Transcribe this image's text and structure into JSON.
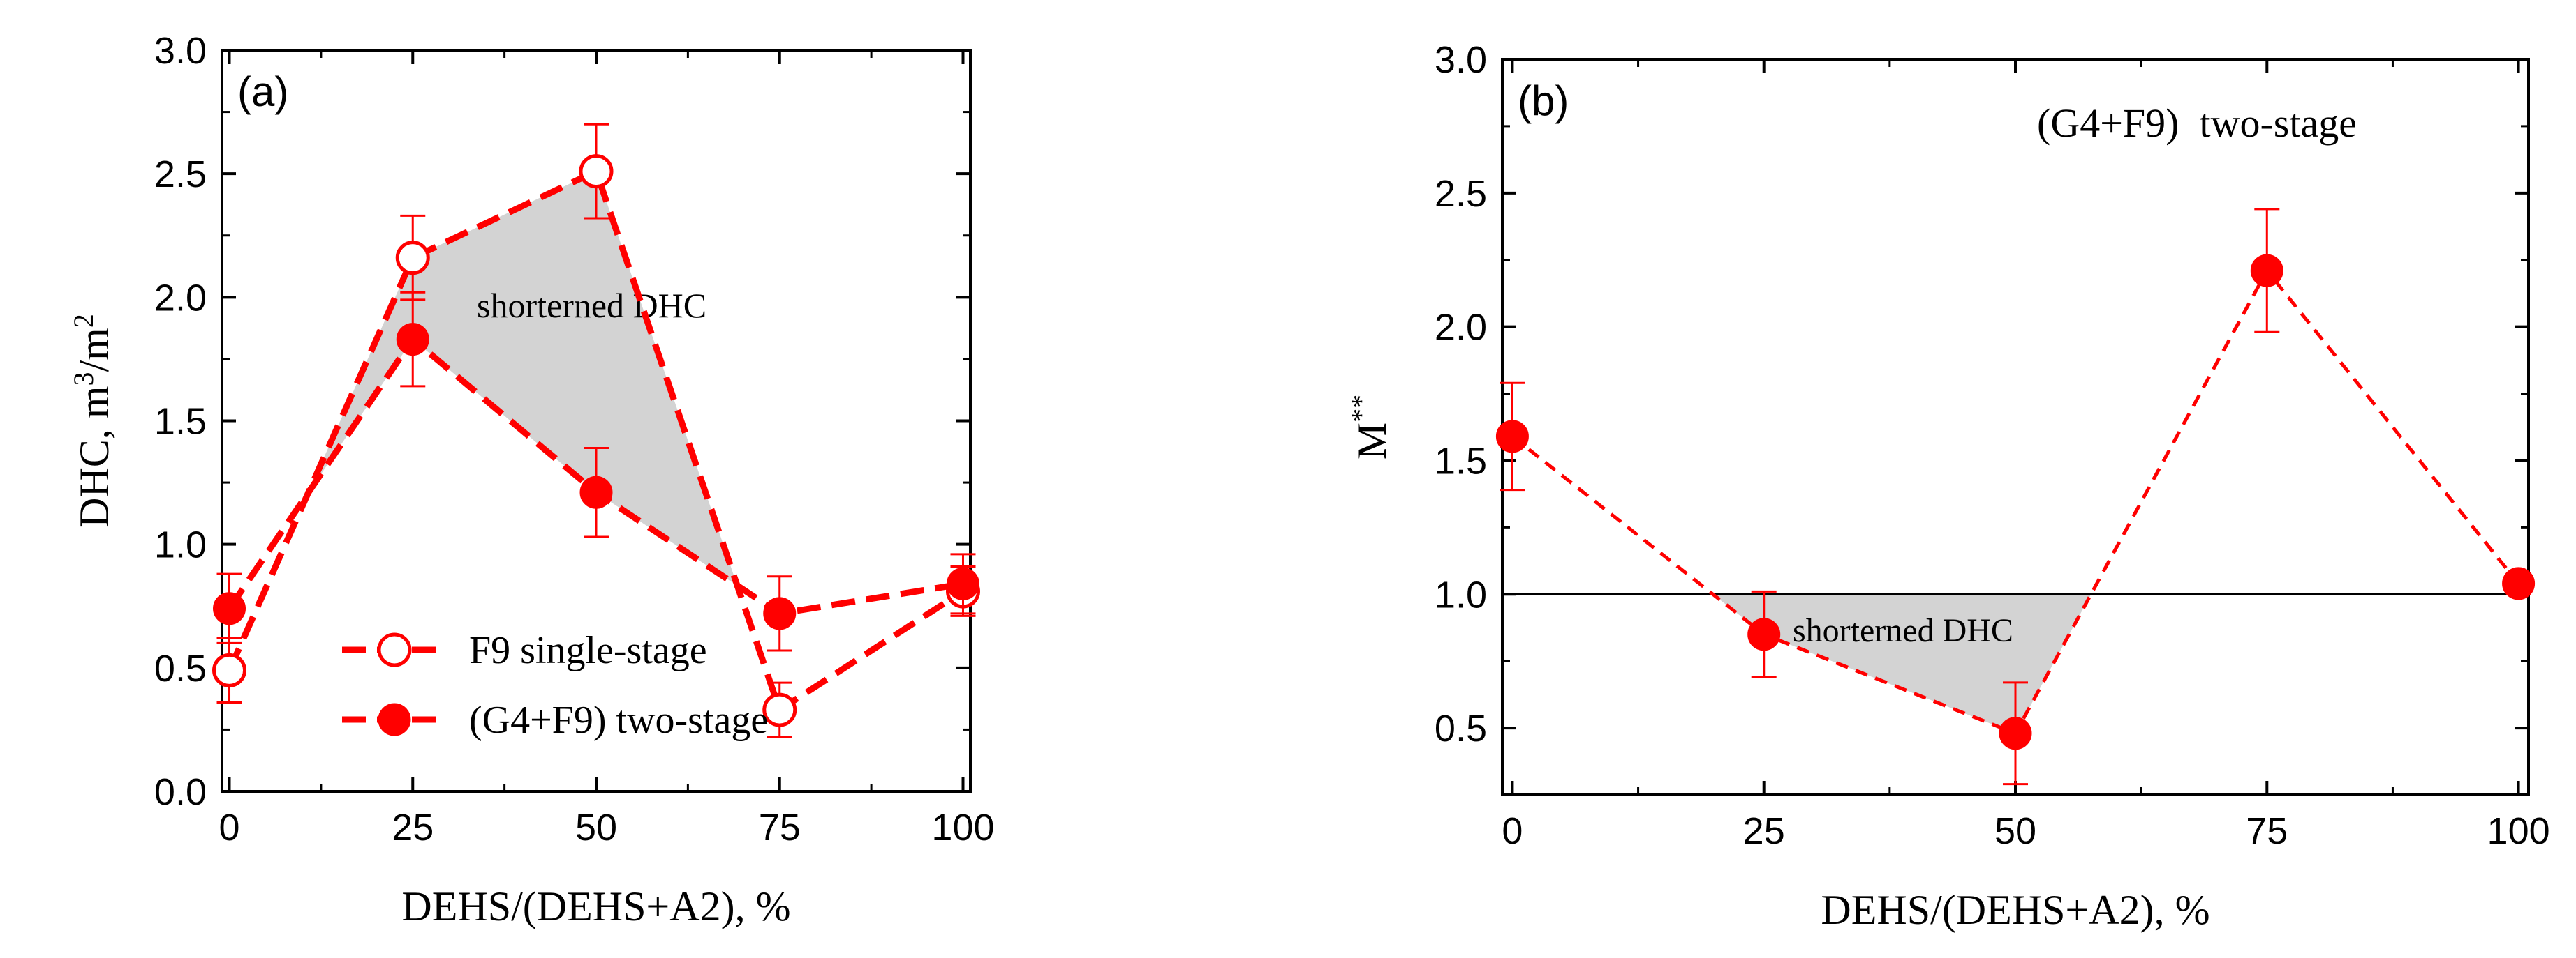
{
  "chart_data": [
    {
      "type": "line",
      "panel_label": "(a)",
      "xlabel": "DEHS/(DEHS+A2), %",
      "ylabel": {
        "base": "DHC, m",
        "sup1": "3",
        "mid": "/m",
        "sup2": "2"
      },
      "xlim": [
        -1,
        101
      ],
      "ylim": [
        0,
        3.0
      ],
      "x_ticks": [
        0,
        25,
        50,
        75,
        100
      ],
      "x_tick_labels": [
        "0",
        "25",
        "50",
        "75",
        "100"
      ],
      "y_ticks": [
        0,
        0.5,
        1.0,
        1.5,
        2.0,
        2.5,
        3.0
      ],
      "y_tick_labels": [
        "0.0",
        "0.5",
        "1.0",
        "1.5",
        "2.0",
        "2.5",
        "3.0"
      ],
      "series": [
        {
          "name": "F9 single-stage",
          "marker": "open-circle",
          "x": [
            0,
            25,
            50,
            75,
            100
          ],
          "y": [
            0.49,
            2.16,
            2.51,
            0.33,
            0.81
          ],
          "err": [
            0.13,
            0.17,
            0.19,
            0.11,
            0.1
          ]
        },
        {
          "name": "(G4+F9) two-stage",
          "marker": "filled-circle",
          "x": [
            0,
            25,
            50,
            75,
            100
          ],
          "y": [
            0.74,
            1.83,
            1.21,
            0.72,
            0.84
          ],
          "err": [
            0.14,
            0.19,
            0.18,
            0.15,
            0.12
          ]
        }
      ],
      "shaded_region": {
        "label": "shorterned DHC",
        "between": [
          "F9 single-stage",
          "(G4+F9) two-stage"
        ]
      },
      "legend_position": "bottom-left",
      "color": "#ff0000"
    },
    {
      "type": "line",
      "panel_label": "(b)",
      "title": "(G4+F9)  two-stage",
      "xlabel": "DEHS/(DEHS+A2), %",
      "ylabel": {
        "base": "M",
        "sup": "**"
      },
      "xlim": [
        -1,
        101
      ],
      "ylim": [
        0.25,
        3.0
      ],
      "x_ticks": [
        0,
        25,
        50,
        75,
        100
      ],
      "x_tick_labels": [
        "0",
        "25",
        "50",
        "75",
        "100"
      ],
      "y_ticks": [
        0.5,
        1.0,
        1.5,
        2.0,
        2.5,
        3.0
      ],
      "y_tick_labels": [
        "0.5",
        "1.0",
        "1.5",
        "2.0",
        "2.5",
        "3.0"
      ],
      "reference_line": 1.0,
      "series": [
        {
          "name": "M**",
          "marker": "filled-circle",
          "x": [
            0,
            25,
            50,
            75,
            100
          ],
          "y": [
            1.59,
            0.85,
            0.48,
            2.21,
            1.04
          ],
          "err": [
            0.2,
            0.16,
            0.19,
            0.23,
            0
          ]
        }
      ],
      "shaded_region": {
        "label": "shorterned DHC",
        "between": [
          "M**",
          "reference_line"
        ]
      },
      "color": "#ff0000"
    }
  ]
}
